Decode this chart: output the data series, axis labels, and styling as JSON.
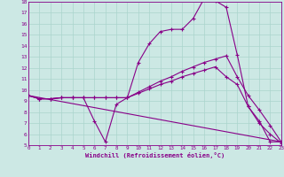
{
  "xlabel": "Windchill (Refroidissement éolien,°C)",
  "bg_color": "#cce8e4",
  "line_color": "#880088",
  "grid_color": "#aad4cc",
  "xlim": [
    0,
    23
  ],
  "ylim": [
    5,
    18
  ],
  "xticks": [
    0,
    1,
    2,
    3,
    4,
    5,
    6,
    7,
    8,
    9,
    10,
    11,
    12,
    13,
    14,
    15,
    16,
    17,
    18,
    19,
    20,
    21,
    22,
    23
  ],
  "yticks": [
    5,
    6,
    7,
    8,
    9,
    10,
    11,
    12,
    13,
    14,
    15,
    16,
    17,
    18
  ],
  "line1_x": [
    0,
    1,
    2,
    3,
    4,
    5,
    6,
    7,
    8,
    9,
    10,
    11,
    12,
    13,
    14,
    15,
    16,
    17,
    18,
    19,
    20,
    21,
    22,
    23
  ],
  "line1_y": [
    9.5,
    9.2,
    9.2,
    9.3,
    9.3,
    9.3,
    7.2,
    5.3,
    8.7,
    9.3,
    12.5,
    14.2,
    15.3,
    15.5,
    15.5,
    16.5,
    18.3,
    18.1,
    17.5,
    13.2,
    8.5,
    7.2,
    5.3,
    5.3
  ],
  "line2_x": [
    0,
    1,
    2,
    3,
    4,
    5,
    6,
    7,
    8,
    9,
    10,
    11,
    12,
    13,
    14,
    15,
    16,
    17,
    18,
    19,
    20,
    21,
    22,
    23
  ],
  "line2_y": [
    9.5,
    9.2,
    9.2,
    9.3,
    9.3,
    9.3,
    9.3,
    9.3,
    9.3,
    9.3,
    9.8,
    10.3,
    10.8,
    11.2,
    11.7,
    12.1,
    12.5,
    12.8,
    13.1,
    11.2,
    9.5,
    8.2,
    6.8,
    5.3
  ],
  "line3_x": [
    0,
    1,
    2,
    3,
    4,
    5,
    6,
    7,
    8,
    9,
    10,
    11,
    12,
    13,
    14,
    15,
    16,
    17,
    18,
    19,
    20,
    21,
    22,
    23
  ],
  "line3_y": [
    9.5,
    9.2,
    9.2,
    9.3,
    9.3,
    9.3,
    9.3,
    9.3,
    9.3,
    9.3,
    9.7,
    10.1,
    10.5,
    10.8,
    11.2,
    11.5,
    11.8,
    12.1,
    11.2,
    10.5,
    8.5,
    7.0,
    6.0,
    5.2
  ],
  "line4_x": [
    0,
    23
  ],
  "line4_y": [
    9.5,
    5.3
  ]
}
